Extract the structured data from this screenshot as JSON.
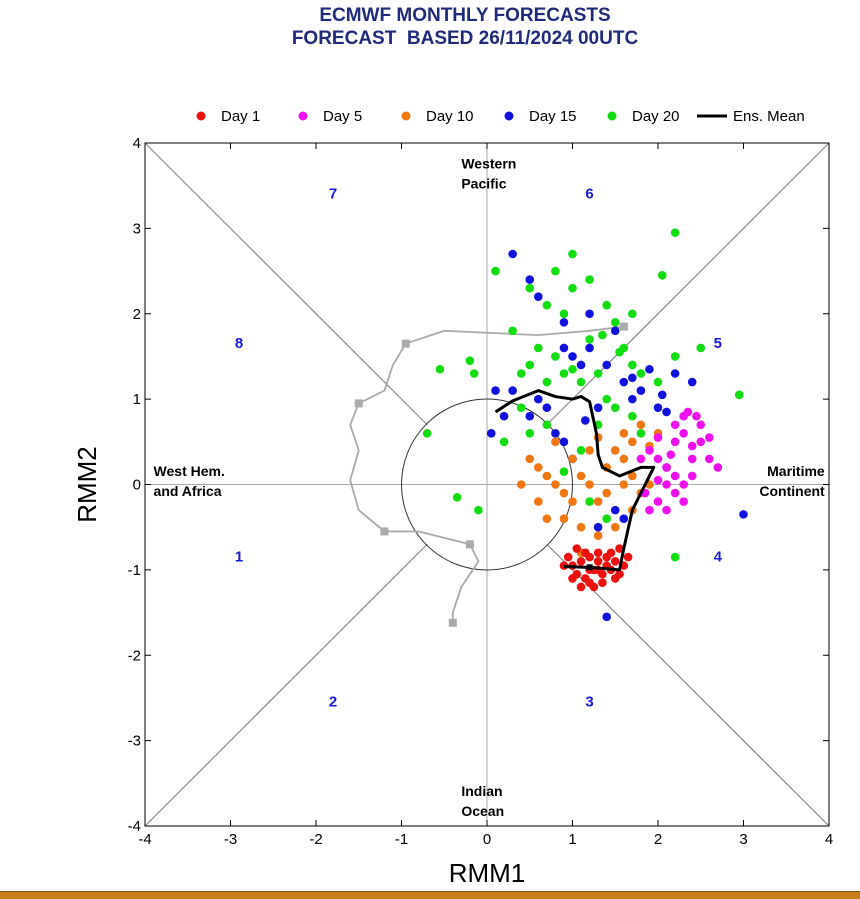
{
  "title_line1": "ECMWF MONTHLY FORECASTS",
  "title_line2": "FORECAST  BASED 26/11/2024 00UTC",
  "chart_data": {
    "type": "scatter",
    "xlabel": "RMM1",
    "ylabel": "RMM2",
    "xlim": [
      -4,
      4
    ],
    "ylim": [
      -4,
      4
    ],
    "xticks": [
      "-4",
      "-3",
      "-2",
      "-1",
      "0",
      "1",
      "2",
      "3",
      "4"
    ],
    "yticks": [
      "-4",
      "-3",
      "-2",
      "-1",
      "0",
      "1",
      "2",
      "3",
      "4"
    ],
    "legend_placement": "top",
    "legend": [
      {
        "label": "Day 1",
        "color": "#ee1111",
        "kind": "dot"
      },
      {
        "label": "Day 5",
        "color": "#ee11ee",
        "kind": "dot"
      },
      {
        "label": "Day 10",
        "color": "#ee7711",
        "kind": "dot"
      },
      {
        "label": "Day 15",
        "color": "#1111dd",
        "kind": "dot"
      },
      {
        "label": "Day 20",
        "color": "#11dd11",
        "kind": "dot"
      },
      {
        "label": "Ens. Mean",
        "color": "#000000",
        "kind": "line"
      }
    ],
    "region_labels": [
      {
        "lines": [
          "Western",
          "Pacific"
        ],
        "x": -0.3,
        "y": 3.7,
        "anchor": "start"
      },
      {
        "lines": [
          "Indian",
          "Ocean"
        ],
        "x": -0.3,
        "y": -3.65,
        "anchor": "start"
      },
      {
        "lines": [
          "West Hem.",
          "and Africa"
        ],
        "x": -3.9,
        "y": 0.1,
        "anchor": "start"
      },
      {
        "lines": [
          "Maritime",
          "Continent"
        ],
        "x": 3.95,
        "y": 0.1,
        "anchor": "end"
      }
    ],
    "phase_labels": [
      {
        "text": "1",
        "x": -2.9,
        "y": -0.9
      },
      {
        "text": "2",
        "x": -1.8,
        "y": -2.6
      },
      {
        "text": "3",
        "x": 1.2,
        "y": -2.6
      },
      {
        "text": "4",
        "x": 2.7,
        "y": -0.9
      },
      {
        "text": "5",
        "x": 2.7,
        "y": 1.6
      },
      {
        "text": "6",
        "x": 1.2,
        "y": 3.35
      },
      {
        "text": "7",
        "x": -1.8,
        "y": 3.35
      },
      {
        "text": "8",
        "x": -2.9,
        "y": 1.6
      }
    ],
    "analysis_trajectory": {
      "color": "#aaaaaa",
      "points": [
        [
          1.6,
          1.85
        ],
        [
          1.2,
          1.8
        ],
        [
          0.6,
          1.75
        ],
        [
          -0.5,
          1.8
        ],
        [
          -0.95,
          1.65
        ],
        [
          -1.1,
          1.4
        ],
        [
          -1.2,
          1.1
        ],
        [
          -1.5,
          0.95
        ],
        [
          -1.6,
          0.7
        ],
        [
          -1.5,
          0.4
        ],
        [
          -1.6,
          0.05
        ],
        [
          -1.5,
          -0.3
        ],
        [
          -1.2,
          -0.55
        ],
        [
          -0.8,
          -0.55
        ],
        [
          -0.2,
          -0.7
        ],
        [
          -0.1,
          -0.9
        ],
        [
          -0.3,
          -1.2
        ],
        [
          -0.4,
          -1.5
        ],
        [
          -0.4,
          -1.62
        ]
      ],
      "marker_indices": [
        0,
        4,
        7,
        12,
        14,
        18
      ]
    },
    "ensemble_mean": {
      "color": "#000000",
      "points": [
        [
          0.1,
          0.85
        ],
        [
          0.3,
          0.98
        ],
        [
          0.6,
          1.1
        ],
        [
          0.8,
          1.03
        ],
        [
          1.0,
          1.0
        ],
        [
          1.1,
          1.03
        ],
        [
          1.2,
          0.97
        ],
        [
          1.28,
          0.6
        ],
        [
          1.3,
          0.35
        ],
        [
          1.35,
          0.2
        ],
        [
          1.55,
          0.1
        ],
        [
          1.8,
          0.2
        ],
        [
          1.95,
          0.2
        ],
        [
          1.7,
          -0.3
        ],
        [
          1.6,
          -0.75
        ],
        [
          1.55,
          -1.0
        ],
        [
          1.2,
          -0.97
        ],
        [
          0.9,
          -0.96
        ]
      ]
    },
    "series": [
      {
        "name": "Day 20",
        "color": "#11dd11",
        "points": [
          [
            0.1,
            2.5
          ],
          [
            0.3,
            1.8
          ],
          [
            0.5,
            2.3
          ],
          [
            0.7,
            2.1
          ],
          [
            0.9,
            2.0
          ],
          [
            1.0,
            2.3
          ],
          [
            1.2,
            1.7
          ],
          [
            1.4,
            2.1
          ],
          [
            1.5,
            1.9
          ],
          [
            0.8,
            2.5
          ],
          [
            1.0,
            2.7
          ],
          [
            1.2,
            2.4
          ],
          [
            1.6,
            1.6
          ],
          [
            1.7,
            1.4
          ],
          [
            1.8,
            1.3
          ],
          [
            2.0,
            1.2
          ],
          [
            2.2,
            1.5
          ],
          [
            2.5,
            1.6
          ],
          [
            2.2,
            2.95
          ],
          [
            2.05,
            2.45
          ],
          [
            0.6,
            1.6
          ],
          [
            0.8,
            1.5
          ],
          [
            0.9,
            1.3
          ],
          [
            1.0,
            1.35
          ],
          [
            1.1,
            1.2
          ],
          [
            1.3,
            1.3
          ],
          [
            0.7,
            1.2
          ],
          [
            0.5,
            1.4
          ],
          [
            0.4,
            1.3
          ],
          [
            1.4,
            1.0
          ],
          [
            1.5,
            0.9
          ],
          [
            1.7,
            0.8
          ],
          [
            1.8,
            0.6
          ],
          [
            1.3,
            0.7
          ],
          [
            1.1,
            0.4
          ],
          [
            0.7,
            0.7
          ],
          [
            0.5,
            0.6
          ],
          [
            0.4,
            0.9
          ],
          [
            -0.15,
            1.3
          ],
          [
            -0.2,
            1.45
          ],
          [
            -0.55,
            1.35
          ],
          [
            -0.7,
            0.6
          ],
          [
            -0.35,
            -0.15
          ],
          [
            -0.1,
            -0.3
          ],
          [
            0.2,
            0.5
          ],
          [
            0.9,
            0.15
          ],
          [
            1.2,
            -0.2
          ],
          [
            1.4,
            -0.4
          ],
          [
            2.2,
            -0.85
          ],
          [
            2.95,
            1.05
          ],
          [
            1.55,
            1.55
          ],
          [
            1.35,
            1.75
          ],
          [
            1.7,
            2.0
          ]
        ]
      },
      {
        "name": "Day 15",
        "color": "#1111dd",
        "points": [
          [
            0.3,
            2.7
          ],
          [
            0.5,
            2.4
          ],
          [
            0.6,
            2.2
          ],
          [
            0.9,
            1.6
          ],
          [
            1.0,
            1.5
          ],
          [
            1.1,
            1.4
          ],
          [
            1.2,
            1.6
          ],
          [
            1.4,
            1.4
          ],
          [
            1.5,
            1.8
          ],
          [
            1.6,
            1.2
          ],
          [
            1.7,
            1.0
          ],
          [
            1.8,
            1.1
          ],
          [
            2.0,
            0.9
          ],
          [
            2.1,
            0.85
          ],
          [
            2.2,
            1.3
          ],
          [
            2.4,
            1.2
          ],
          [
            1.2,
            2.0
          ],
          [
            0.9,
            1.9
          ],
          [
            1.7,
            1.25
          ],
          [
            1.9,
            1.35
          ],
          [
            0.6,
            1.0
          ],
          [
            0.7,
            0.9
          ],
          [
            0.8,
            0.6
          ],
          [
            0.9,
            0.5
          ],
          [
            1.0,
            0.3
          ],
          [
            0.5,
            0.8
          ],
          [
            0.2,
            0.8
          ],
          [
            0.3,
            1.1
          ],
          [
            0.1,
            1.1
          ],
          [
            0.05,
            0.6
          ],
          [
            2.1,
            0.2
          ],
          [
            1.6,
            -0.4
          ],
          [
            1.3,
            -0.5
          ],
          [
            1.5,
            -0.3
          ],
          [
            1.4,
            -1.55
          ],
          [
            3.0,
            -0.35
          ],
          [
            1.3,
            0.9
          ],
          [
            1.15,
            0.75
          ],
          [
            2.05,
            1.05
          ]
        ]
      },
      {
        "name": "Day 10",
        "color": "#ee7711",
        "points": [
          [
            0.5,
            0.3
          ],
          [
            0.6,
            0.2
          ],
          [
            0.7,
            0.1
          ],
          [
            0.8,
            0.0
          ],
          [
            0.9,
            -0.1
          ],
          [
            1.0,
            0.3
          ],
          [
            1.1,
            0.1
          ],
          [
            1.2,
            0.0
          ],
          [
            1.3,
            -0.2
          ],
          [
            1.4,
            0.2
          ],
          [
            1.5,
            0.4
          ],
          [
            1.6,
            0.3
          ],
          [
            1.7,
            0.1
          ],
          [
            1.8,
            -0.1
          ],
          [
            1.9,
            0.0
          ],
          [
            1.6,
            0.6
          ],
          [
            1.7,
            0.5
          ],
          [
            1.8,
            0.7
          ],
          [
            1.5,
            -0.5
          ],
          [
            1.3,
            -0.6
          ],
          [
            1.1,
            -0.5
          ],
          [
            0.9,
            -0.4
          ],
          [
            0.7,
            -0.4
          ],
          [
            0.6,
            -0.2
          ],
          [
            0.4,
            0.0
          ],
          [
            1.6,
            0.0
          ],
          [
            1.4,
            -0.1
          ],
          [
            1.2,
            0.4
          ],
          [
            1.0,
            -0.2
          ],
          [
            0.8,
            0.5
          ],
          [
            1.7,
            -0.3
          ],
          [
            1.3,
            0.55
          ],
          [
            1.9,
            0.45
          ],
          [
            2.0,
            0.6
          ],
          [
            1.1,
            -0.8
          ]
        ]
      },
      {
        "name": "Day 5",
        "color": "#ee11ee",
        "points": [
          [
            1.9,
            0.4
          ],
          [
            2.0,
            0.3
          ],
          [
            2.1,
            0.2
          ],
          [
            2.2,
            0.1
          ],
          [
            2.3,
            0.0
          ],
          [
            2.4,
            0.3
          ],
          [
            2.5,
            0.5
          ],
          [
            2.3,
            0.6
          ],
          [
            2.2,
            0.5
          ],
          [
            2.1,
            0.0
          ],
          [
            2.0,
            -0.2
          ],
          [
            1.9,
            -0.3
          ],
          [
            2.1,
            -0.3
          ],
          [
            2.3,
            -0.2
          ],
          [
            2.4,
            0.1
          ],
          [
            2.6,
            0.3
          ],
          [
            2.7,
            0.2
          ],
          [
            2.5,
            0.7
          ],
          [
            2.3,
            0.8
          ],
          [
            2.4,
            0.45
          ],
          [
            2.2,
            0.7
          ],
          [
            1.8,
            0.3
          ],
          [
            2.0,
            0.55
          ],
          [
            2.6,
            0.55
          ],
          [
            2.2,
            -0.1
          ],
          [
            2.35,
            0.85
          ],
          [
            2.15,
            0.35
          ],
          [
            2.0,
            0.05
          ],
          [
            2.45,
            0.8
          ],
          [
            1.85,
            -0.1
          ]
        ]
      },
      {
        "name": "Day 1",
        "color": "#ee1111",
        "points": [
          [
            0.95,
            -0.85
          ],
          [
            1.0,
            -0.95
          ],
          [
            1.05,
            -1.05
          ],
          [
            1.1,
            -0.9
          ],
          [
            1.15,
            -1.1
          ],
          [
            1.2,
            -0.85
          ],
          [
            1.25,
            -1.0
          ],
          [
            1.3,
            -0.9
          ],
          [
            1.35,
            -1.05
          ],
          [
            1.4,
            -0.85
          ],
          [
            1.45,
            -1.0
          ],
          [
            1.5,
            -0.9
          ],
          [
            1.55,
            -1.05
          ],
          [
            1.6,
            -0.95
          ],
          [
            1.15,
            -0.8
          ],
          [
            1.3,
            -0.8
          ],
          [
            1.45,
            -0.8
          ],
          [
            1.0,
            -1.1
          ],
          [
            1.2,
            -1.15
          ],
          [
            1.35,
            -1.15
          ],
          [
            1.5,
            -1.1
          ],
          [
            1.1,
            -1.2
          ],
          [
            1.25,
            -1.2
          ],
          [
            0.9,
            -0.95
          ],
          [
            1.65,
            -0.85
          ],
          [
            1.05,
            -0.75
          ],
          [
            1.4,
            -0.95
          ],
          [
            1.2,
            -1.0
          ],
          [
            1.3,
            -1.0
          ],
          [
            1.55,
            -0.75
          ]
        ]
      }
    ]
  }
}
